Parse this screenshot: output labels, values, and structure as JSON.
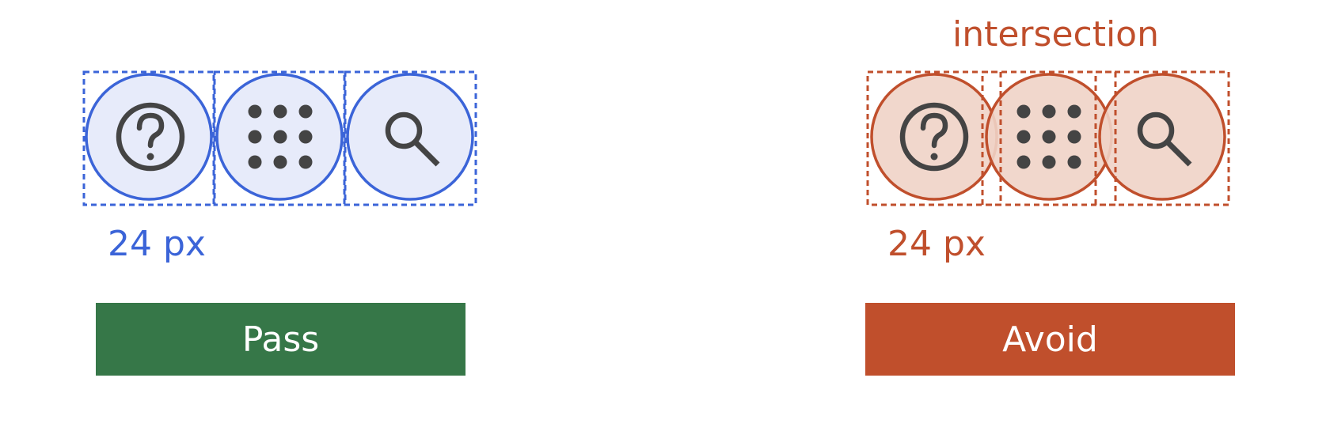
{
  "pass_example": {
    "size_label": "24 px",
    "verdict": "Pass",
    "colors": {
      "accent": "#3b64d8",
      "fill": "#e7ebfa",
      "verdict_bg": "#367748"
    },
    "icons": [
      "help-icon",
      "apps-grid-icon",
      "search-icon"
    ]
  },
  "avoid_example": {
    "annotation": "intersection",
    "size_label": "24 px",
    "verdict": "Avoid",
    "colors": {
      "accent": "#c04f2c",
      "fill": "#f0d3c6",
      "verdict_bg": "#c04f2c"
    },
    "icons": [
      "help-icon",
      "apps-grid-icon",
      "search-icon"
    ]
  },
  "colors": {
    "icon_glyph": "#444444"
  }
}
